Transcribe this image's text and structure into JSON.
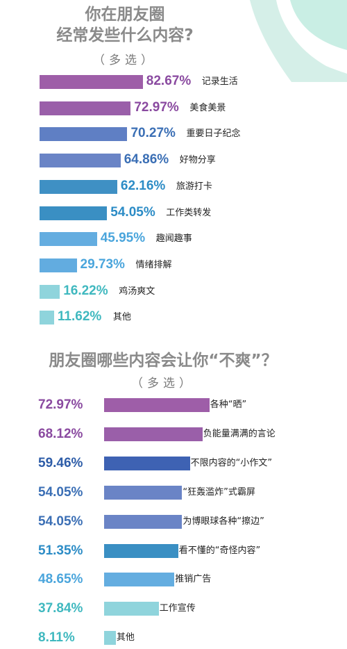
{
  "colors": {
    "title": "#8a8a8a",
    "decoration_teal": "#b3e2d6"
  },
  "chart_data": [
    {
      "type": "bar",
      "title": "你在朋友圈经常发些什么内容？",
      "title_lines": [
        "你在朋友圈",
        "经常发些什么内容?"
      ],
      "subtitle": "（多选）",
      "orientation": "horizontal",
      "categories": [
        "记录生活",
        "美食美景",
        "重要日子纪念",
        "好物分享",
        "旅游打卡",
        "工作类转发",
        "趣闻趣事",
        "情绪排解",
        "鸡汤爽文",
        "其他"
      ],
      "values": [
        82.67,
        72.97,
        70.27,
        64.86,
        62.16,
        54.05,
        45.95,
        29.73,
        16.22,
        11.62
      ],
      "value_labels": [
        "82.67%",
        "72.97%",
        "70.27%",
        "64.86%",
        "62.16%",
        "54.05%",
        "45.95%",
        "29.73%",
        "16.22%",
        "11.62%"
      ],
      "bar_colors": [
        "#9e5ea8",
        "#9a5fa9",
        "#5f7fc4",
        "#6a84c6",
        "#3f90c4",
        "#3a8fc3",
        "#64ade0",
        "#62ace0",
        "#8fd4dc",
        "#8fd4dc"
      ],
      "value_colors": [
        "#8a4aa0",
        "#8a4aa0",
        "#3b6fb5",
        "#3b6fb5",
        "#2c8cc6",
        "#2c8cc6",
        "#4aa5dc",
        "#4aa5dc",
        "#3fb8bf",
        "#3fb8bf"
      ],
      "xlim": [
        0,
        100
      ],
      "xlabel": "",
      "ylabel": "",
      "grid": false,
      "legend": "none"
    },
    {
      "type": "bar",
      "title": "朋友圈哪些内容会让你“不爽”？",
      "subtitle": "（多选）",
      "orientation": "horizontal",
      "categories": [
        "各种“晒”",
        "负能量满满的言论",
        "不限内容的“小作文”",
        "“狂轰滥炸”式霸屏",
        "为博眼球各种“擦边”",
        "看不懂的“奇怪内容”",
        "推销广告",
        "工作宣传",
        "其他"
      ],
      "values": [
        72.97,
        68.12,
        59.46,
        54.05,
        54.05,
        51.35,
        48.65,
        37.84,
        8.11
      ],
      "value_labels": [
        "72.97%",
        "68.12%",
        "59.46%",
        "54.05%",
        "54.05%",
        "51.35%",
        "48.65%",
        "37.84%",
        "8.11%"
      ],
      "bar_colors": [
        "#9e5ea8",
        "#9a5fa9",
        "#3e62b3",
        "#6a84c6",
        "#6a84c6",
        "#3a8fc3",
        "#64ade0",
        "#8fd4dc",
        "#8fd4dc"
      ],
      "value_colors": [
        "#8a4aa0",
        "#8a4aa0",
        "#2e5da8",
        "#3b6fb5",
        "#3b6fb5",
        "#2c8cc6",
        "#4aa5dc",
        "#3fb8bf",
        "#3fb8bf"
      ],
      "xlim": [
        0,
        100
      ],
      "xlabel": "",
      "ylabel": "",
      "grid": false,
      "legend": "none"
    }
  ]
}
